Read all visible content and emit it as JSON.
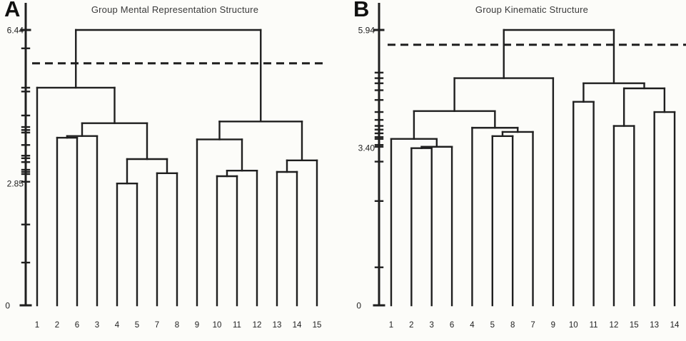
{
  "figure": {
    "background_color": "#fcfcf9",
    "line_color": "#1f1f1f",
    "title_color": "#3a3a3a",
    "label_color": "#1f1f1f"
  },
  "panels": [
    {
      "letter": "A",
      "title": "Group Mental Representation Structure"
    },
    {
      "letter": "B",
      "title": "Group Kinematic Structure"
    }
  ],
  "chart_data": [
    {
      "type": "dendrogram",
      "panel": "A",
      "title": "Group Mental Representation Structure",
      "ylim": [
        0,
        6.44
      ],
      "axis_value_labels": [
        {
          "value": 6.44,
          "text": "6.44"
        },
        {
          "value": 2.85,
          "text": "2.85"
        },
        {
          "value": 0,
          "text": "0"
        }
      ],
      "axis_tick_values": [
        6.01,
        5.09,
        5.0,
        4.44,
        4.17,
        4.1,
        4.04,
        3.75,
        3.5,
        3.44,
        3.35,
        3.17,
        3.12,
        3.07,
        2.89,
        1.89,
        1.0
      ],
      "cut_line_value": 5.66,
      "cut_line_style": "dashed",
      "leaf_order": [
        "1",
        "2",
        "6",
        "3",
        "4",
        "5",
        "7",
        "8",
        "9",
        "10",
        "11",
        "12",
        "13",
        "14",
        "15"
      ],
      "linkage": [
        [
          "4",
          "5",
          2.85
        ],
        [
          "10",
          "11",
          3.02
        ],
        [
          "7",
          "8",
          3.09
        ],
        [
          "13",
          "14",
          3.12
        ],
        [
          "(10,11)",
          "12",
          3.15
        ],
        [
          "(13,14)",
          "15",
          3.39
        ],
        [
          "(4,5)",
          "(7,8)",
          3.42
        ],
        [
          "9",
          "(10,11,12)",
          3.88
        ],
        [
          "2",
          "6",
          3.92
        ],
        [
          "(2,6)",
          "3",
          3.96
        ],
        [
          "(2,6,3)",
          "(4,5,7,8)",
          4.26
        ],
        [
          "(9,10,11,12)",
          "(13,14,15)",
          4.3
        ],
        [
          "1",
          "(2,6,3,4,5,7,8)",
          5.09
        ],
        [
          "(1..8)",
          "(9..15)",
          6.44
        ]
      ],
      "tree": {
        "h": 6.44,
        "children": [
          {
            "h": 5.09,
            "children": [
              {
                "leaf": "1"
              },
              {
                "h": 4.26,
                "children": [
                  {
                    "h": 3.96,
                    "children": [
                      {
                        "h": 3.92,
                        "children": [
                          {
                            "leaf": "2"
                          },
                          {
                            "leaf": "6"
                          }
                        ]
                      },
                      {
                        "leaf": "3"
                      }
                    ]
                  },
                  {
                    "h": 3.42,
                    "children": [
                      {
                        "h": 2.85,
                        "children": [
                          {
                            "leaf": "4"
                          },
                          {
                            "leaf": "5"
                          }
                        ]
                      },
                      {
                        "h": 3.09,
                        "children": [
                          {
                            "leaf": "7"
                          },
                          {
                            "leaf": "8"
                          }
                        ]
                      }
                    ]
                  }
                ]
              }
            ]
          },
          {
            "h": 4.3,
            "children": [
              {
                "h": 3.88,
                "children": [
                  {
                    "leaf": "9"
                  },
                  {
                    "h": 3.15,
                    "children": [
                      {
                        "h": 3.02,
                        "children": [
                          {
                            "leaf": "10"
                          },
                          {
                            "leaf": "11"
                          }
                        ]
                      },
                      {
                        "leaf": "12"
                      }
                    ]
                  }
                ]
              },
              {
                "h": 3.39,
                "children": [
                  {
                    "h": 3.12,
                    "children": [
                      {
                        "leaf": "13"
                      },
                      {
                        "leaf": "14"
                      }
                    ]
                  },
                  {
                    "leaf": "15"
                  }
                ]
              }
            ]
          }
        ]
      }
    },
    {
      "type": "dendrogram",
      "panel": "B",
      "title": "Group Kinematic Structure",
      "ylim": [
        0,
        5.94
      ],
      "axis_value_labels": [
        {
          "value": 5.94,
          "text": "5.94"
        },
        {
          "value": 3.4,
          "text": "3.40"
        },
        {
          "value": 0,
          "text": "0"
        }
      ],
      "axis_tick_values": [
        5.02,
        4.9,
        4.79,
        4.64,
        4.43,
        4.17,
        4.0,
        3.87,
        3.79,
        3.71,
        3.63,
        3.59,
        3.46,
        3.42,
        3.1,
        2.25,
        0.82
      ],
      "cut_line_value": 5.62,
      "cut_line_style": "dashed",
      "leaf_order": [
        "1",
        "2",
        "3",
        "6",
        "4",
        "5",
        "8",
        "7",
        "9",
        "10",
        "11",
        "12",
        "15",
        "13",
        "14"
      ],
      "linkage": [
        [
          "2",
          "3",
          3.39
        ],
        [
          "(2,3)",
          "6",
          3.42
        ],
        [
          "1",
          "(2,3,6)",
          3.59
        ],
        [
          "5",
          "8",
          3.65
        ],
        [
          "(5,8)",
          "7",
          3.74
        ],
        [
          "4",
          "(5,8,7)",
          3.83
        ],
        [
          "12",
          "15",
          3.87
        ],
        [
          "13",
          "14",
          4.17
        ],
        [
          "(1,2,3,6)",
          "(4,5,8,7)",
          4.19
        ],
        [
          "10",
          "11",
          4.39
        ],
        [
          "(12,15)",
          "(13,14)",
          4.68
        ],
        [
          "(1..7)",
          "9",
          4.9
        ],
        [
          "(10,11)",
          "(12,15,13,14)",
          4.79
        ],
        [
          "(1..9)",
          "(10..14)",
          5.94
        ]
      ],
      "tree": {
        "h": 5.94,
        "children": [
          {
            "h": 4.9,
            "children": [
              {
                "h": 4.19,
                "children": [
                  {
                    "h": 3.59,
                    "children": [
                      {
                        "leaf": "1"
                      },
                      {
                        "h": 3.42,
                        "children": [
                          {
                            "h": 3.39,
                            "children": [
                              {
                                "leaf": "2"
                              },
                              {
                                "leaf": "3"
                              }
                            ]
                          },
                          {
                            "leaf": "6"
                          }
                        ]
                      }
                    ]
                  },
                  {
                    "h": 3.83,
                    "children": [
                      {
                        "leaf": "4"
                      },
                      {
                        "h": 3.74,
                        "children": [
                          {
                            "h": 3.65,
                            "children": [
                              {
                                "leaf": "5"
                              },
                              {
                                "leaf": "8"
                              }
                            ]
                          },
                          {
                            "leaf": "7"
                          }
                        ]
                      }
                    ]
                  }
                ]
              },
              {
                "leaf": "9"
              }
            ]
          },
          {
            "h": 4.79,
            "children": [
              {
                "h": 4.39,
                "children": [
                  {
                    "leaf": "10"
                  },
                  {
                    "leaf": "11"
                  }
                ]
              },
              {
                "h": 4.68,
                "children": [
                  {
                    "h": 3.87,
                    "children": [
                      {
                        "leaf": "12"
                      },
                      {
                        "leaf": "15"
                      }
                    ]
                  },
                  {
                    "h": 4.17,
                    "children": [
                      {
                        "leaf": "13"
                      },
                      {
                        "leaf": "14"
                      }
                    ]
                  }
                ]
              }
            ]
          }
        ]
      }
    }
  ]
}
